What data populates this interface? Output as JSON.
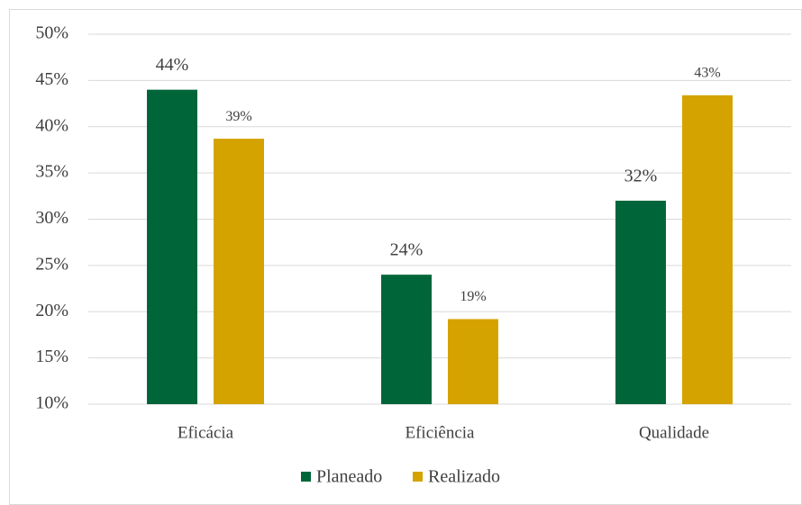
{
  "chart_data": {
    "type": "bar",
    "categories": [
      "Eficácia",
      "Eficiência",
      "Qualidade"
    ],
    "series": [
      {
        "name": "Planeado",
        "color": "#00663a",
        "values": [
          44,
          24,
          32
        ],
        "value_labels": [
          "44%",
          "24%",
          "32%"
        ]
      },
      {
        "name": "Realizado",
        "color": "#d4a300",
        "values": [
          38.7,
          19.2,
          43.4
        ],
        "value_labels": [
          "39%",
          "19%",
          "43%"
        ]
      }
    ],
    "ylim": [
      10,
      50
    ],
    "yticks": [
      {
        "value": 10,
        "label": "10%"
      },
      {
        "value": 15,
        "label": "15%"
      },
      {
        "value": 20,
        "label": "20%"
      },
      {
        "value": 25,
        "label": "25%"
      },
      {
        "value": 30,
        "label": "30%"
      },
      {
        "value": 35,
        "label": "35%"
      },
      {
        "value": 40,
        "label": "40%"
      },
      {
        "value": 45,
        "label": "45%"
      },
      {
        "value": 50,
        "label": "50%"
      }
    ],
    "grid": true,
    "legend": "bottom"
  }
}
